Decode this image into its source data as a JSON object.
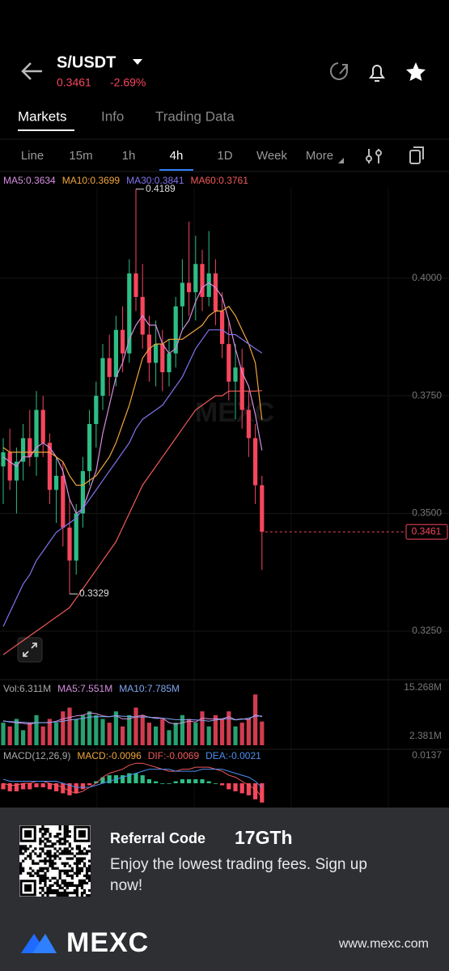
{
  "header": {
    "pair": "S/USDT",
    "price": "0.3461",
    "change": "-2.69%"
  },
  "tabs": [
    "Markets",
    "Info",
    "Trading Data"
  ],
  "intervals": [
    "Line",
    "15m",
    "1h",
    "4h",
    "1D",
    "Week",
    "More"
  ],
  "chart_data": {
    "type": "candlestick",
    "watermark": "MEXC",
    "up_color": "#2ebd85",
    "down_color": "#f6465d",
    "ylim": [
      0.3164,
      0.4192
    ],
    "yticks": [
      {
        "value": 0.4,
        "label": "0.4000"
      },
      {
        "value": 0.375,
        "label": "0.3750"
      },
      {
        "value": 0.35,
        "label": "0.3500"
      },
      {
        "value": 0.325,
        "label": "0.3250"
      }
    ],
    "grid": true,
    "last_price": {
      "value": 0.3461,
      "label": "0.3461"
    },
    "high_label": {
      "value": 0.4189,
      "label": "0.4189"
    },
    "low_label": {
      "value": 0.3329,
      "label": "0.3329"
    },
    "candles": {
      "open": [
        0.36,
        0.363,
        0.357,
        0.361,
        0.366,
        0.362,
        0.372,
        0.365,
        0.355,
        0.358,
        0.347,
        0.34,
        0.35,
        0.359,
        0.369,
        0.375,
        0.383,
        0.379,
        0.389,
        0.384,
        0.401,
        0.396,
        0.388,
        0.382,
        0.386,
        0.38,
        0.384,
        0.394,
        0.399,
        0.397,
        0.403,
        0.396,
        0.401,
        0.393,
        0.386,
        0.378,
        0.381,
        0.372,
        0.366,
        0.356
      ],
      "high": [
        0.366,
        0.368,
        0.364,
        0.369,
        0.372,
        0.376,
        0.375,
        0.367,
        0.362,
        0.361,
        0.353,
        0.352,
        0.362,
        0.372,
        0.378,
        0.386,
        0.388,
        0.392,
        0.394,
        0.404,
        0.4189,
        0.403,
        0.392,
        0.391,
        0.389,
        0.387,
        0.396,
        0.404,
        0.412,
        0.409,
        0.406,
        0.41,
        0.404,
        0.397,
        0.391,
        0.386,
        0.385,
        0.376,
        0.369,
        0.358
      ],
      "low": [
        0.352,
        0.355,
        0.35,
        0.357,
        0.36,
        0.358,
        0.362,
        0.352,
        0.348,
        0.343,
        0.3329,
        0.337,
        0.347,
        0.356,
        0.364,
        0.372,
        0.375,
        0.377,
        0.38,
        0.382,
        0.393,
        0.385,
        0.378,
        0.377,
        0.376,
        0.377,
        0.381,
        0.389,
        0.392,
        0.391,
        0.393,
        0.394,
        0.39,
        0.383,
        0.374,
        0.37,
        0.368,
        0.362,
        0.352,
        0.338
      ],
      "close": [
        0.363,
        0.357,
        0.361,
        0.366,
        0.362,
        0.372,
        0.365,
        0.355,
        0.358,
        0.347,
        0.34,
        0.35,
        0.359,
        0.369,
        0.375,
        0.383,
        0.379,
        0.389,
        0.384,
        0.401,
        0.396,
        0.388,
        0.382,
        0.386,
        0.38,
        0.384,
        0.394,
        0.399,
        0.397,
        0.403,
        0.396,
        0.401,
        0.393,
        0.386,
        0.378,
        0.381,
        0.372,
        0.366,
        0.356,
        0.3461
      ]
    },
    "ma": [
      {
        "name": "MA5",
        "legend": "MA5:0.3634",
        "color": "#d68fe0",
        "values": [
          0.362,
          0.361,
          0.36,
          0.362,
          0.362,
          0.364,
          0.365,
          0.364,
          0.362,
          0.359,
          0.353,
          0.35,
          0.351,
          0.355,
          0.359,
          0.367,
          0.373,
          0.379,
          0.382,
          0.387,
          0.39,
          0.392,
          0.39,
          0.39,
          0.386,
          0.384,
          0.385,
          0.389,
          0.391,
          0.395,
          0.398,
          0.399,
          0.398,
          0.396,
          0.391,
          0.385,
          0.38,
          0.377,
          0.371,
          0.3634
        ]
      },
      {
        "name": "MA10",
        "legend": "MA10:0.3699",
        "color": "#f0a53c",
        "values": [
          0.364,
          0.363,
          0.363,
          0.363,
          0.363,
          0.363,
          0.363,
          0.363,
          0.362,
          0.361,
          0.358,
          0.356,
          0.356,
          0.357,
          0.358,
          0.36,
          0.362,
          0.365,
          0.369,
          0.373,
          0.378,
          0.383,
          0.385,
          0.386,
          0.386,
          0.387,
          0.387,
          0.387,
          0.388,
          0.389,
          0.39,
          0.392,
          0.393,
          0.393,
          0.394,
          0.392,
          0.389,
          0.386,
          0.382,
          0.3699
        ]
      },
      {
        "name": "MA30",
        "legend": "MA30:0.3841",
        "color": "#7f74ee",
        "values": [
          0.326,
          0.329,
          0.332,
          0.335,
          0.337,
          0.34,
          0.342,
          0.344,
          0.346,
          0.347,
          0.348,
          0.349,
          0.351,
          0.353,
          0.355,
          0.357,
          0.359,
          0.361,
          0.363,
          0.365,
          0.368,
          0.37,
          0.371,
          0.372,
          0.373,
          0.375,
          0.377,
          0.379,
          0.382,
          0.385,
          0.387,
          0.389,
          0.389,
          0.389,
          0.388,
          0.388,
          0.387,
          0.386,
          0.385,
          0.3841
        ]
      },
      {
        "name": "MA60",
        "legend": "MA60:0.3761",
        "color": "#f0595a",
        "values": [
          0.32,
          0.321,
          0.322,
          0.323,
          0.324,
          0.325,
          0.326,
          0.327,
          0.328,
          0.329,
          0.33,
          0.332,
          0.334,
          0.336,
          0.338,
          0.34,
          0.342,
          0.344,
          0.347,
          0.35,
          0.353,
          0.356,
          0.358,
          0.36,
          0.362,
          0.364,
          0.366,
          0.368,
          0.37,
          0.372,
          0.373,
          0.374,
          0.375,
          0.375,
          0.376,
          0.376,
          0.376,
          0.376,
          0.376,
          0.3761
        ]
      }
    ],
    "volume": {
      "legend": "Vol:6.311M",
      "ylim": [
        0,
        15.268
      ],
      "yticks": [
        {
          "value": 15.268,
          "label": "15.268M"
        },
        {
          "value": 2.381,
          "label": "2.381M"
        }
      ],
      "values": [
        6,
        5,
        7,
        4,
        6,
        8,
        5,
        7,
        6,
        9,
        10,
        7,
        8,
        9,
        8,
        7,
        6,
        9,
        5,
        8,
        10,
        8,
        6,
        5,
        7,
        4,
        6,
        8,
        7,
        6,
        9,
        5,
        8,
        7,
        9,
        5,
        6,
        7,
        13.5,
        6.311
      ],
      "ma": [
        {
          "name": "MA5",
          "legend": "MA5:7.551M",
          "color": "#d68fe0",
          "values": [
            6.5,
            6.2,
            6.0,
            5.8,
            5.6,
            6.0,
            6.0,
            6.0,
            6.4,
            7.0,
            7.4,
            7.8,
            8.0,
            8.6,
            8.4,
            7.8,
            7.6,
            7.8,
            7.0,
            7.0,
            7.6,
            8.0,
            7.4,
            7.4,
            7.2,
            6.0,
            5.6,
            6.0,
            6.4,
            6.2,
            7.2,
            7.0,
            7.0,
            7.0,
            7.6,
            6.8,
            7.0,
            6.8,
            8.1,
            7.551
          ]
        },
        {
          "name": "MA10",
          "legend": "MA10:7.785M",
          "color": "#7fa7f0",
          "values": [
            6.4,
            6.3,
            6.2,
            6.1,
            6.0,
            6.0,
            6.0,
            6.1,
            6.2,
            6.4,
            6.7,
            6.9,
            7.1,
            7.5,
            7.6,
            7.6,
            7.6,
            7.9,
            7.7,
            7.7,
            7.5,
            7.5,
            7.5,
            7.1,
            7.2,
            7.0,
            6.8,
            6.8,
            6.8,
            6.7,
            6.6,
            6.4,
            6.7,
            6.9,
            7.1,
            6.7,
            6.9,
            7.2,
            7.7,
            7.785
          ]
        }
      ]
    },
    "macd": {
      "legend": "MACD(12,26,9)",
      "ylim": [
        -0.0129,
        0.0137
      ],
      "yticks": [
        {
          "value": 0.0137,
          "label": "0.0137"
        }
      ],
      "hist": {
        "legend": "MACD:-0.0096",
        "values": [
          -0.003,
          -0.004,
          -0.004,
          -0.003,
          -0.003,
          -0.002,
          -0.002,
          -0.003,
          -0.004,
          -0.005,
          -0.006,
          -0.005,
          -0.003,
          -0.001,
          0.001,
          0.003,
          0.004,
          0.004,
          0.004,
          0.005,
          0.005,
          0.004,
          0.002,
          0.001,
          0.0,
          0.0,
          0.001,
          0.002,
          0.002,
          0.002,
          0.002,
          0.001,
          0.0,
          -0.001,
          -0.003,
          -0.004,
          -0.005,
          -0.006,
          -0.008,
          -0.0096
        ]
      },
      "lines": [
        {
          "name": "DIF",
          "legend": "DIF:-0.0069",
          "color": "#f0595a",
          "values": [
            0.0,
            -0.001,
            -0.001,
            0.0,
            0.0,
            0.001,
            0.001,
            0.0,
            -0.001,
            -0.002,
            -0.004,
            -0.005,
            -0.004,
            -0.002,
            0.0,
            0.003,
            0.005,
            0.006,
            0.007,
            0.009,
            0.01,
            0.01,
            0.009,
            0.008,
            0.007,
            0.006,
            0.006,
            0.007,
            0.007,
            0.008,
            0.008,
            0.008,
            0.007,
            0.006,
            0.004,
            0.003,
            0.001,
            -0.001,
            -0.003,
            -0.0069
          ]
        },
        {
          "name": "DEA",
          "legend": "DEA:-0.0021",
          "color": "#4d8ef0",
          "values": [
            0.002,
            0.001,
            0.001,
            0.001,
            0.001,
            0.001,
            0.001,
            0.001,
            0.001,
            0.0,
            -0.001,
            -0.002,
            -0.002,
            -0.002,
            -0.001,
            0.0,
            0.001,
            0.002,
            0.003,
            0.004,
            0.005,
            0.006,
            0.007,
            0.007,
            0.007,
            0.007,
            0.006,
            0.006,
            0.006,
            0.006,
            0.007,
            0.007,
            0.007,
            0.007,
            0.006,
            0.005,
            0.004,
            0.003,
            0.001,
            -0.0021
          ]
        }
      ]
    }
  },
  "banner": {
    "title": "Referral Code",
    "code": "17GTh",
    "text": "Enjoy the lowest trading fees. Sign up now!",
    "brand": "MEXC",
    "url": "www.mexc.com"
  }
}
